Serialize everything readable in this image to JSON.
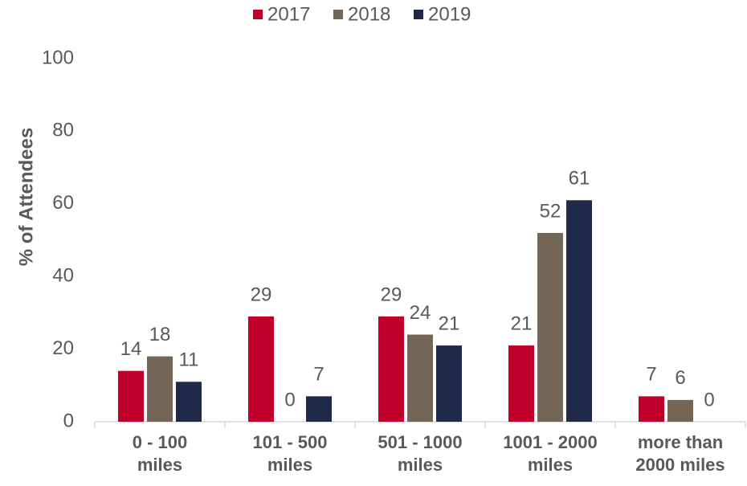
{
  "chart_data": {
    "type": "bar",
    "y_label": "% of Attendees",
    "categories": [
      "0 - 100 miles",
      "101 - 500 miles",
      "501 - 1000 miles",
      "1001 - 2000 miles",
      "more than 2000 miles"
    ],
    "series": [
      {
        "name": "2017",
        "color": "#c0002a",
        "values": [
          14,
          29,
          29,
          21,
          7
        ]
      },
      {
        "name": "2018",
        "color": "#736656",
        "values": [
          18,
          0,
          24,
          52,
          6
        ]
      },
      {
        "name": "2019",
        "color": "#1f2a48",
        "values": [
          11,
          7,
          21,
          61,
          0
        ]
      }
    ],
    "ylim": [
      0,
      100
    ],
    "yticks": [
      0,
      20,
      40,
      60,
      80,
      100
    ],
    "grid": false,
    "legend": "top"
  }
}
